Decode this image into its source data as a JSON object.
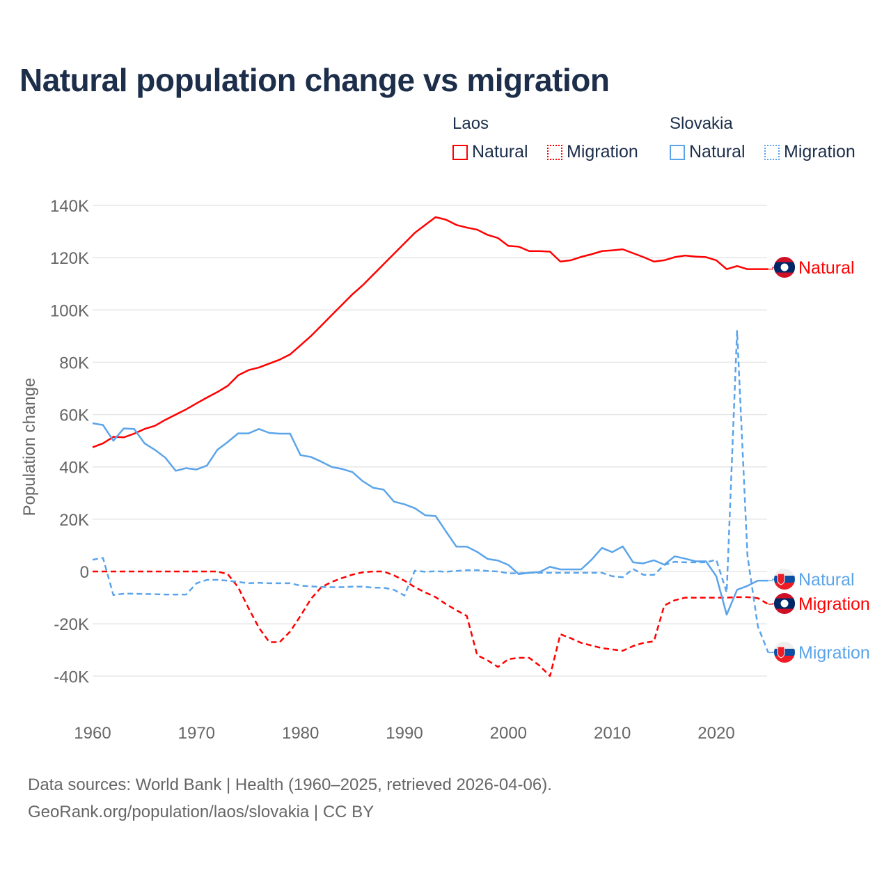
{
  "title": "Natural population change vs migration",
  "legend": {
    "groups": [
      {
        "name": "Laos",
        "items": [
          "Natural",
          "Migration"
        ]
      },
      {
        "name": "Slovakia",
        "items": [
          "Natural",
          "Migration"
        ]
      }
    ]
  },
  "footer": {
    "line1": "Data sources: World Bank | Health (1960–2025, retrieved 2026-04-06).",
    "line2": "GeoRank.org/population/laos/slovakia | CC BY"
  },
  "colors": {
    "laos": "#ff0000",
    "slovakia": "#5ba4ea",
    "grid": "#e6e6e6",
    "axis_text": "#666666"
  },
  "chart_data": {
    "type": "line",
    "title": "Natural population change vs migration",
    "xlabel": "",
    "ylabel": "Population change",
    "xlim": [
      1960,
      2025
    ],
    "ylim": [
      -50000,
      140000
    ],
    "xticks": [
      1960,
      1970,
      1980,
      1990,
      2000,
      2010,
      2020
    ],
    "xtick_labels": [
      "1960",
      "1970",
      "1980",
      "1990",
      "2000",
      "2010",
      "2020"
    ],
    "yticks": [
      -40000,
      -20000,
      0,
      20000,
      40000,
      60000,
      80000,
      100000,
      120000,
      140000
    ],
    "ytick_labels": [
      "-40K",
      "-20K",
      "0",
      "20K",
      "40K",
      "60K",
      "80K",
      "100K",
      "120K",
      "140K"
    ],
    "grid": true,
    "legend_position": "top-right",
    "x_start": 1960,
    "series": [
      {
        "name": "Laos Natural",
        "end_label": "Natural",
        "country": "laos",
        "style": "solid",
        "values_k": [
          47.5,
          49,
          51.5,
          51.3,
          52.7,
          54.5,
          55.7,
          58,
          60,
          62,
          64.3,
          66.5,
          68.6,
          71,
          75,
          77,
          78,
          79.5,
          81,
          83,
          86.5,
          90,
          94,
          98,
          102,
          106,
          109.5,
          113.5,
          117.5,
          121.5,
          125.5,
          129.5,
          132.5,
          135.5,
          134.5,
          132.5,
          131.5,
          130.7,
          128.7,
          127.5,
          124.5,
          124.2,
          122.5,
          122.5,
          122.3,
          118.5,
          119,
          120.3,
          121.3,
          122.5,
          122.8,
          123.2,
          121.7,
          120.2,
          118.5,
          119,
          120.2,
          120.8,
          120.4,
          120.2,
          119,
          115.6,
          116.8,
          115.6,
          115.6,
          115.6
        ]
      },
      {
        "name": "Laos Migration",
        "end_label": "Migration",
        "country": "laos",
        "style": "dashed",
        "values_k": [
          0,
          0,
          0,
          0,
          0,
          0,
          0,
          0,
          0,
          0,
          0,
          0,
          0,
          -1,
          -6,
          -14,
          -21.5,
          -27,
          -27,
          -23,
          -17,
          -10.5,
          -6,
          -4,
          -2.5,
          -1.2,
          -0.3,
          0,
          0,
          -1.5,
          -3.5,
          -6,
          -8,
          -9.8,
          -12.5,
          -14.8,
          -17,
          -32,
          -34,
          -36.5,
          -33.5,
          -33,
          -33,
          -36,
          -40,
          -24,
          -25.5,
          -27.3,
          -28.3,
          -29.3,
          -29.8,
          -30.3,
          -28.5,
          -27.3,
          -26.7,
          -13,
          -11,
          -10,
          -10,
          -10,
          -10,
          -10,
          -9.8,
          -9.8,
          -10.2,
          -12.5
        ]
      },
      {
        "name": "Slovakia Natural",
        "end_label": "Natural",
        "country": "slovakia",
        "style": "solid",
        "values_k": [
          56.7,
          56,
          50,
          54.7,
          54.5,
          49,
          46.5,
          43.5,
          38.5,
          39.5,
          39,
          40.5,
          46.5,
          49.5,
          52.8,
          52.8,
          54.5,
          53,
          52.7,
          52.7,
          44.5,
          43.8,
          42,
          40,
          39.2,
          38,
          34.5,
          32,
          31.3,
          26.7,
          25.7,
          24.2,
          21.5,
          21.2,
          15.3,
          9.5,
          9.5,
          7.5,
          4.8,
          4.2,
          2.5,
          -1,
          -0.5,
          -0.2,
          1.8,
          0.8,
          0.8,
          0.8,
          4.5,
          9,
          7.4,
          9.6,
          3.5,
          3.1,
          4.3,
          2.6,
          5.8,
          4.9,
          3.9,
          3.9,
          -1.8,
          -16.5,
          -7,
          -5.5,
          -3.5,
          -3.5
        ]
      },
      {
        "name": "Slovakia Migration",
        "end_label": "Migration",
        "country": "slovakia",
        "style": "dashed",
        "values_k": [
          4.5,
          5.2,
          -9,
          -8.5,
          -8.5,
          -8.6,
          -8.7,
          -8.8,
          -8.8,
          -8.8,
          -4.5,
          -3.2,
          -3.2,
          -3.5,
          -4,
          -4.5,
          -4.3,
          -4.5,
          -4.5,
          -4.5,
          -5.4,
          -5.7,
          -5.9,
          -6,
          -6,
          -5.8,
          -5.8,
          -6.2,
          -6.2,
          -7,
          -9.2,
          0.3,
          -0.1,
          0.1,
          -0.1,
          0.2,
          0.5,
          0.5,
          0.2,
          0,
          -0.7,
          -0.7,
          -0.5,
          -0.5,
          -0.5,
          -0.5,
          -0.5,
          -0.5,
          -0.5,
          -0.5,
          -1.8,
          -2.2,
          1,
          -1.3,
          -1.3,
          2.5,
          3.7,
          3.5,
          3.5,
          3.5,
          4.5,
          -8,
          92,
          6,
          -21,
          -31
        ]
      }
    ]
  }
}
